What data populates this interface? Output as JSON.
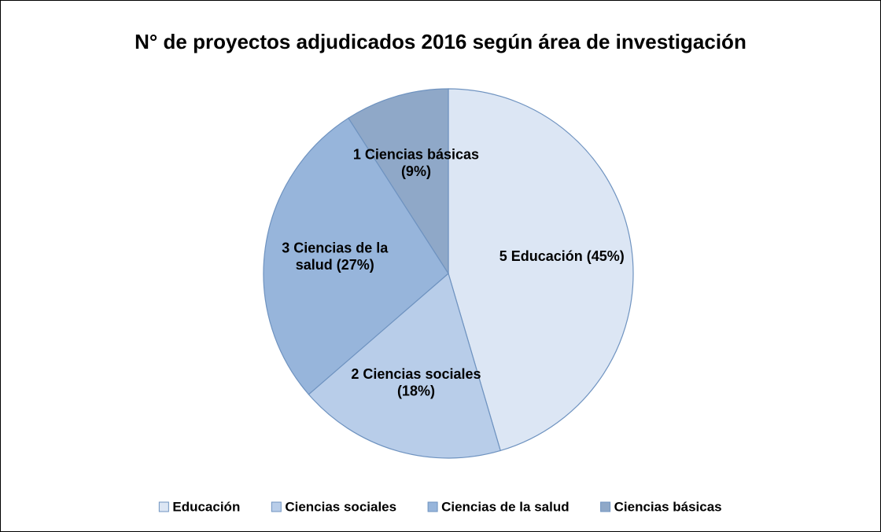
{
  "chart_data": {
    "type": "pie",
    "title": "N° de proyectos adjudicados 2016 según área de investigación",
    "categories": [
      "Educación",
      "Ciencias sociales",
      "Ciencias de la salud",
      "Ciencias básicas"
    ],
    "values": [
      5,
      2,
      3,
      1
    ],
    "value_labels": [
      "5 Educación (45%)",
      "2 Ciencias sociales\n(18%)",
      "3 Ciencias de la\nsalud (27%)",
      "1 Ciencias básicas\n(9%)"
    ],
    "colors": [
      "#dce6f4",
      "#b8cde9",
      "#97b5db",
      "#8fa8c8"
    ],
    "legend": "bottom"
  }
}
